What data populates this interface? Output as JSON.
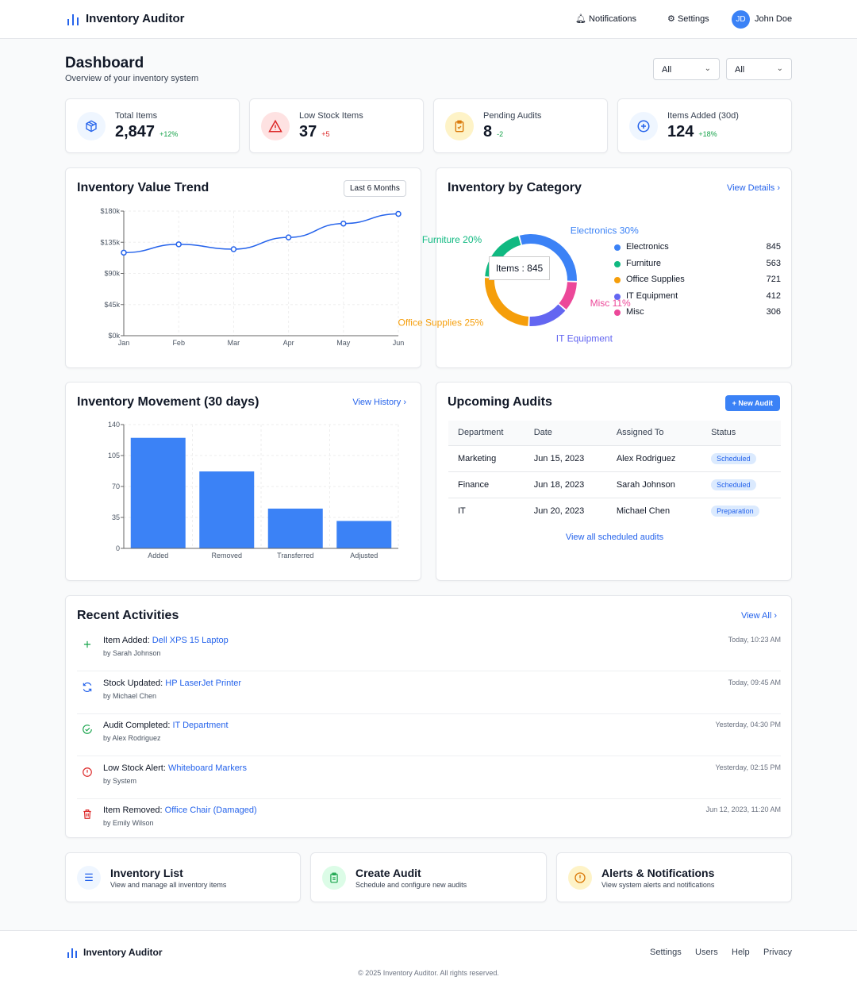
{
  "app": {
    "title": "Inventory Auditor",
    "notifications": "Notifications",
    "settings": "Settings",
    "user_initials": "JD",
    "user_name": "John Doe"
  },
  "page": {
    "title": "Dashboard",
    "subtitle": "Overview of your inventory system",
    "filter1": "All",
    "filter2": "All"
  },
  "stats": [
    {
      "label": "Total Items",
      "value": "2,847",
      "change": "+12%",
      "icon": "cube-icon",
      "color": "#2563eb",
      "change_color": "#16a34a"
    },
    {
      "label": "Low Stock Items",
      "value": "37",
      "change": "+5",
      "icon": "warning-icon",
      "color": "#dc2626",
      "change_color": "#dc2626"
    },
    {
      "label": "Pending Audits",
      "value": "8",
      "change": "-2",
      "icon": "clipboard-check-icon",
      "color": "#d97706",
      "change_color": "#16a34a"
    },
    {
      "label": "Items Added (30d)",
      "value": "124",
      "change": "+18%",
      "icon": "plus-circle-icon",
      "color": "#2563eb",
      "change_color": "#16a34a"
    }
  ],
  "trend": {
    "title": "Inventory Value Trend",
    "range": "Last 6 Months"
  },
  "category": {
    "title": "Inventory by Category",
    "link": "View Details ›",
    "tooltip": "Items : 845"
  },
  "movement": {
    "title": "Inventory Movement (30 days)",
    "link": "View History ›"
  },
  "chart_data": [
    {
      "type": "line",
      "title": "Inventory Value Trend",
      "categories": [
        "Jan",
        "Feb",
        "Mar",
        "Apr",
        "May",
        "Jun"
      ],
      "values": [
        120000,
        132000,
        125000,
        142000,
        162000,
        176000
      ],
      "ylim": [
        0,
        180000
      ],
      "yticks": [
        "$0k",
        "$45k",
        "$90k",
        "$135k",
        "$180k"
      ],
      "color": "#2563eb",
      "grid": true
    },
    {
      "type": "pie",
      "title": "Inventory by Category",
      "categories": [
        "Electronics",
        "Furniture",
        "Office Supplies",
        "IT Equipment",
        "Misc"
      ],
      "values": [
        845,
        563,
        721,
        412,
        306
      ],
      "colors": [
        "#3b82f6",
        "#10b981",
        "#f59e0b",
        "#6366f1",
        "#ec4899"
      ],
      "slice_labels": [
        "Electronics 30%",
        "Furniture 20%",
        "Office Supplies 25%",
        "IT Equipment",
        "Misc 11%"
      ]
    },
    {
      "type": "bar",
      "title": "Inventory Movement (30 days)",
      "categories": [
        "Added",
        "Removed",
        "Transferred",
        "Adjusted"
      ],
      "values": [
        125,
        87,
        45,
        31
      ],
      "ylim": [
        0,
        140
      ],
      "yticks": [
        "0",
        "35",
        "70",
        "105",
        "140"
      ],
      "color": "#3b82f6",
      "grid": true
    }
  ],
  "audits": {
    "title": "Upcoming Audits",
    "new_button": "+ New Audit",
    "columns": [
      "Department",
      "Date",
      "Assigned To",
      "Status"
    ],
    "rows": [
      [
        "Marketing",
        "Jun 15, 2023",
        "Alex Rodriguez",
        "Scheduled"
      ],
      [
        "Finance",
        "Jun 18, 2023",
        "Sarah Johnson",
        "Scheduled"
      ],
      [
        "IT",
        "Jun 20, 2023",
        "Michael Chen",
        "Preparation"
      ]
    ],
    "link": "View all scheduled audits"
  },
  "activities": {
    "title": "Recent Activities",
    "link": "View All ›",
    "items": [
      {
        "action": "Item Added:",
        "target": "Dell XPS 15 Laptop",
        "by": "by Sarah Johnson",
        "time": "Today, 10:23 AM",
        "icon": "plus-icon",
        "color": "#16a34a"
      },
      {
        "action": "Stock Updated:",
        "target": "HP LaserJet Printer",
        "by": "by Michael Chen",
        "time": "Today, 09:45 AM",
        "icon": "refresh-icon",
        "color": "#2563eb"
      },
      {
        "action": "Audit Completed:",
        "target": "IT Department",
        "by": "by Alex Rodriguez",
        "time": "Yesterday, 04:30 PM",
        "icon": "check-circle-icon",
        "color": "#16a34a"
      },
      {
        "action": "Low Stock Alert:",
        "target": "Whiteboard Markers",
        "by": "by System",
        "time": "Yesterday, 02:15 PM",
        "icon": "alert-circle-icon",
        "color": "#dc2626"
      },
      {
        "action": "Item Removed:",
        "target": "Office Chair (Damaged)",
        "by": "by Emily Wilson",
        "time": "Jun 12, 2023, 11:20 AM",
        "icon": "trash-icon",
        "color": "#dc2626"
      }
    ]
  },
  "quick_links": [
    {
      "title": "Inventory List",
      "desc": "View and manage all inventory items",
      "icon": "list-icon"
    },
    {
      "title": "Create Audit",
      "desc": "Schedule and configure new audits",
      "icon": "clipboard-icon"
    },
    {
      "title": "Alerts & Notifications",
      "desc": "View system alerts and notifications",
      "icon": "alert-icon"
    }
  ],
  "footer": {
    "title": "Inventory Auditor",
    "links": [
      "Settings",
      "Users",
      "Help",
      "Privacy"
    ],
    "copyright": "© 2025 Inventory Auditor. All rights reserved."
  }
}
